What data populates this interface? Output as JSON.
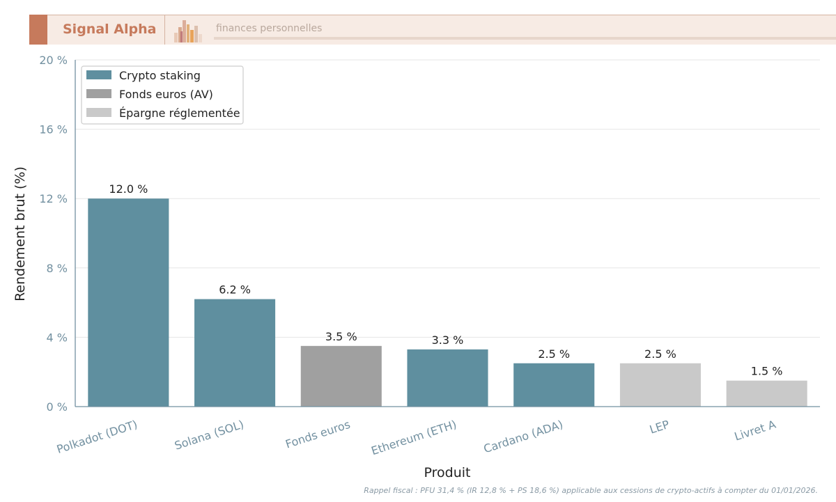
{
  "header": {
    "brand": "Signal Alpha",
    "tagline": "finances personnelles",
    "brand_color": "#c67a5c",
    "logo_icon": "bar-chart-logo-icon"
  },
  "chart_data": {
    "type": "bar",
    "categories": [
      "Polkadot (DOT)",
      "Solana (SOL)",
      "Fonds euros",
      "Ethereum (ETH)",
      "Cardano (ADA)",
      "LEP",
      "Livret A"
    ],
    "values": [
      12.0,
      6.2,
      3.5,
      3.3,
      2.5,
      2.5,
      1.5
    ],
    "value_labels": [
      "12.0 %",
      "6.2 %",
      "3.5 %",
      "3.3 %",
      "2.5 %",
      "2.5 %",
      "1.5 %"
    ],
    "groups": [
      "Crypto staking",
      "Crypto staking",
      "Fonds euros (AV)",
      "Crypto staking",
      "Crypto staking",
      "Épargne réglementée",
      "Épargne réglementée"
    ],
    "legend": [
      {
        "name": "Crypto staking",
        "color": "#5f8f9f"
      },
      {
        "name": "Fonds euros (AV)",
        "color": "#a0a0a0"
      },
      {
        "name": "Épargne réglementée",
        "color": "#c9c9c9"
      }
    ],
    "legend_position": "top-left",
    "xlabel": "Produit",
    "ylabel": "Rendement brut (%)",
    "ylim": [
      0,
      20
    ],
    "yticks": [
      0,
      4,
      8,
      12,
      16,
      20
    ],
    "ytick_labels": [
      "0 %",
      "4 %",
      "8 %",
      "12 %",
      "16 %",
      "20 %"
    ],
    "grid": true,
    "tick_color": "#7290a0"
  },
  "footnote": "Rappel fiscal : PFU 31,4 % (IR 12,8 % + PS 18,6 %) applicable aux cessions de crypto-actifs à compter du 01/01/2026."
}
